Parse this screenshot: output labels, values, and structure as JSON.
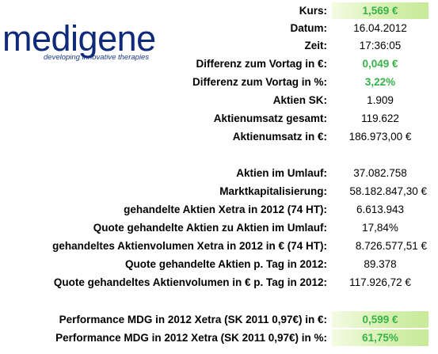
{
  "logo": {
    "word": "medigene",
    "tagline": "developing innovative therapies"
  },
  "rows": [
    {
      "label": "Kurs:",
      "value": "1,569 €"
    },
    {
      "label": "Datum:",
      "value": "16.04.2012"
    },
    {
      "label": "Zeit:",
      "value": "17:36:05"
    },
    {
      "label": "Differenz zum Vortag in €:",
      "value": "0,049 €"
    },
    {
      "label": "Differenz zum Vortag in %:",
      "value": "3,22%"
    },
    {
      "label": "Aktien SK:",
      "value": "1.909"
    },
    {
      "label": "Aktienumsatz gesamt:",
      "value": "119.622"
    },
    {
      "label": "Aktienumsatz in €:",
      "value": "186.973,00 €"
    },
    {
      "label": "Aktien im Umlauf:",
      "value": "37.082.758"
    },
    {
      "label": "Marktkapitalisierung:",
      "value": "58.182.847,30 €"
    },
    {
      "label": "gehandelte Aktien Xetra in 2012 (74 HT):",
      "value": "6.613.943"
    },
    {
      "label": "Quote gehandelte Aktien zu Aktien im Umlauf:",
      "value": "17,84%"
    },
    {
      "label": "gehandeltes Aktienvolumen Xetra in 2012 in € (74 HT):",
      "value": "8.726.577,51 €"
    },
    {
      "label": "Quote gehandelte Aktien p. Tag in 2012:",
      "value": "89.378"
    },
    {
      "label": "Quote gehandeltes Aktienvolumen in € p. Tag in 2012:",
      "value": "117.926,72 €"
    },
    {
      "label": "Performance MDG in 2012 Xetra (SK 2011 0,97€) in €:",
      "value": "0,599 €"
    },
    {
      "label": "Performance MDG in 2012 Xetra (SK 2011 0,97€) in %:",
      "value": "61,75%"
    }
  ],
  "colors": {
    "positive_green": "#37b24a",
    "highlight_green": "#c7ea98",
    "logo_blue": "#0e2a78"
  }
}
